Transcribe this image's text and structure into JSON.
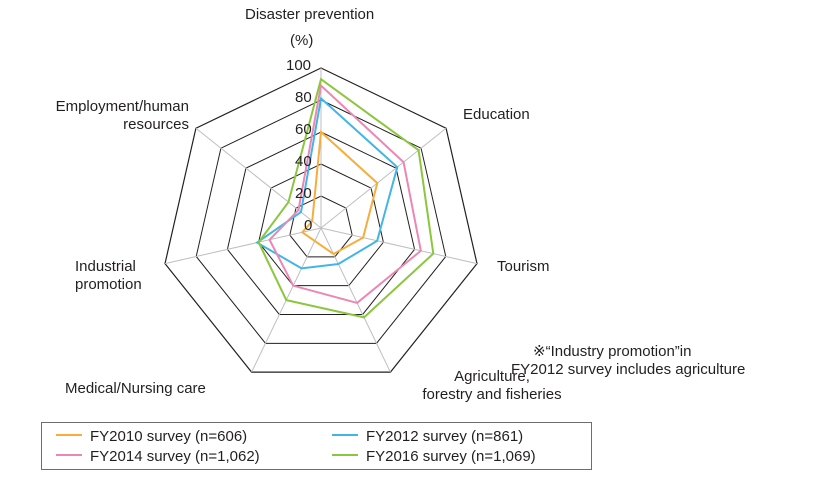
{
  "chart_data": {
    "type": "radar",
    "title": "",
    "axis_unit": "(%)",
    "rlim": [
      0,
      100
    ],
    "ticks": [
      "0",
      "20",
      "40",
      "60",
      "80",
      "100"
    ],
    "categories": [
      "Disaster prevention",
      "Education",
      "Tourism",
      "Agriculture, forestry and fisheries",
      "Medical/Nursing care",
      "Industrial promotion",
      "Employment/human resources"
    ],
    "category_labels": [
      [
        "Disaster prevention"
      ],
      [
        "Education"
      ],
      [
        "Tourism"
      ],
      [
        "Agriculture,",
        "forestry and fisheries"
      ],
      [
        "Medical/Nursing care"
      ],
      [
        "Industrial",
        "promotion"
      ],
      [
        "Employment/human",
        "resources"
      ]
    ],
    "series": [
      {
        "name": "FY2010 survey (n=606)",
        "color": "#f6ad3c",
        "values": [
          60,
          45,
          27,
          18,
          9,
          12,
          7
        ]
      },
      {
        "name": "FY2012 survey (n=861)",
        "color": "#41b6e6",
        "values": [
          81,
          61,
          36,
          25,
          28,
          41,
          16
        ]
      },
      {
        "name": "FY2014 survey (n=1,062)",
        "color": "#ec87b3",
        "values": [
          89,
          66,
          64,
          52,
          40,
          33,
          18
        ]
      },
      {
        "name": "FY2016 survey (n=1,069)",
        "color": "#8cc63e",
        "values": [
          93,
          78,
          72,
          62,
          50,
          40,
          26
        ]
      }
    ],
    "grid": true,
    "legend_position": "bottom-left",
    "note": [
      "※“Industry promotion”in",
      "FY2012 survey includes agriculture"
    ]
  }
}
